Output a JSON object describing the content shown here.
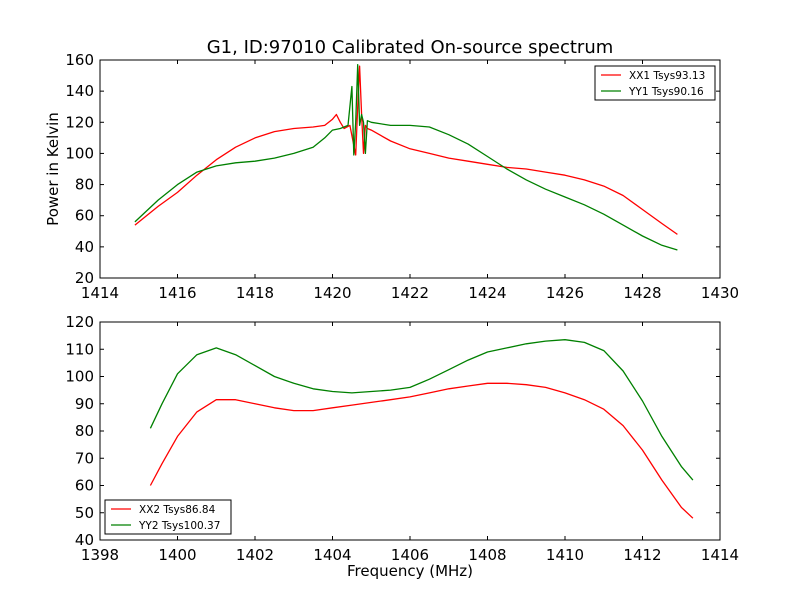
{
  "figure": {
    "title": "G1, ID:97010 Calibrated On-source spectrum",
    "xlabel": "Frequency (MHz)",
    "ylabel": "Power in Kelvin"
  },
  "chart_data": [
    {
      "type": "line",
      "title": "G1, ID:97010 Calibrated On-source spectrum",
      "xlabel": "",
      "ylabel": "Power in Kelvin",
      "xlim": [
        1414,
        1430
      ],
      "ylim": [
        20,
        160
      ],
      "xticks": [
        1414,
        1416,
        1418,
        1420,
        1422,
        1424,
        1426,
        1428,
        1430
      ],
      "yticks": [
        20,
        40,
        60,
        80,
        100,
        120,
        140,
        160
      ],
      "grid": false,
      "legend_position": "top-right",
      "series": [
        {
          "name": "XX1 Tsys93.13",
          "color": "#ff0000",
          "x": [
            1414.9,
            1415.2,
            1415.5,
            1416.0,
            1416.5,
            1417.0,
            1417.5,
            1418.0,
            1418.5,
            1419.0,
            1419.5,
            1419.8,
            1420.0,
            1420.1,
            1420.2,
            1420.3,
            1420.45,
            1420.6,
            1420.65,
            1420.7,
            1420.75,
            1420.8,
            1420.85,
            1420.9,
            1421.0,
            1421.5,
            1422.0,
            1422.5,
            1423.0,
            1423.5,
            1424.0,
            1424.5,
            1425.0,
            1425.5,
            1426.0,
            1426.5,
            1427.0,
            1427.5,
            1428.0,
            1428.5,
            1428.9
          ],
          "y": [
            54,
            60,
            66,
            75,
            86,
            96,
            104,
            110,
            114,
            116,
            117,
            118,
            122,
            125,
            120,
            116,
            118,
            99,
            130,
            156,
            125,
            100,
            118,
            116,
            115,
            108,
            103,
            100,
            97,
            95,
            93,
            91,
            90,
            88,
            86,
            83,
            79,
            73,
            64,
            55,
            48
          ]
        },
        {
          "name": "YY1 Tsys90.16",
          "color": "#008000",
          "x": [
            1414.9,
            1415.2,
            1415.5,
            1416.0,
            1416.5,
            1417.0,
            1417.5,
            1418.0,
            1418.5,
            1419.0,
            1419.5,
            1419.8,
            1420.0,
            1420.2,
            1420.4,
            1420.5,
            1420.55,
            1420.6,
            1420.65,
            1420.7,
            1420.75,
            1420.8,
            1420.85,
            1420.9,
            1421.0,
            1421.5,
            1422.0,
            1422.5,
            1423.0,
            1423.5,
            1424.0,
            1424.5,
            1425.0,
            1425.5,
            1426.0,
            1426.5,
            1427.0,
            1427.5,
            1428.0,
            1428.5,
            1428.9
          ],
          "y": [
            56,
            63,
            70,
            80,
            88,
            92,
            94,
            95,
            97,
            100,
            104,
            110,
            115,
            116,
            118,
            143,
            99,
            120,
            157,
            118,
            125,
            120,
            100,
            121,
            120,
            118,
            118,
            117,
            112,
            106,
            98,
            90,
            83,
            77,
            72,
            67,
            61,
            54,
            47,
            41,
            38
          ]
        }
      ]
    },
    {
      "type": "line",
      "title": "",
      "xlabel": "Frequency (MHz)",
      "ylabel": "",
      "xlim": [
        1398,
        1414
      ],
      "ylim": [
        40,
        120
      ],
      "xticks": [
        1398,
        1400,
        1402,
        1404,
        1406,
        1408,
        1410,
        1412,
        1414
      ],
      "yticks": [
        40,
        50,
        60,
        70,
        80,
        90,
        100,
        110,
        120
      ],
      "grid": false,
      "legend_position": "bottom-left",
      "series": [
        {
          "name": "XX2 Tsys86.84",
          "color": "#ff0000",
          "x": [
            1399.3,
            1399.6,
            1400.0,
            1400.5,
            1401.0,
            1401.5,
            1402.0,
            1402.5,
            1403.0,
            1403.5,
            1404.0,
            1404.5,
            1405.0,
            1405.5,
            1406.0,
            1406.5,
            1407.0,
            1407.5,
            1408.0,
            1408.5,
            1409.0,
            1409.5,
            1410.0,
            1410.5,
            1411.0,
            1411.5,
            1412.0,
            1412.5,
            1413.0,
            1413.3
          ],
          "y": [
            60,
            68,
            78,
            87,
            91.5,
            91.5,
            90,
            88.5,
            87.5,
            87.5,
            88.5,
            89.5,
            90.5,
            91.5,
            92.5,
            94,
            95.5,
            96.5,
            97.5,
            97.5,
            97,
            96,
            94,
            91.5,
            88,
            82,
            73,
            62,
            52,
            48
          ]
        },
        {
          "name": "YY2 Tsys100.37",
          "color": "#008000",
          "x": [
            1399.3,
            1399.6,
            1400.0,
            1400.5,
            1401.0,
            1401.5,
            1402.0,
            1402.5,
            1403.0,
            1403.5,
            1404.0,
            1404.5,
            1405.0,
            1405.5,
            1406.0,
            1406.5,
            1407.0,
            1407.5,
            1408.0,
            1408.5,
            1409.0,
            1409.5,
            1410.0,
            1410.5,
            1411.0,
            1411.5,
            1412.0,
            1412.5,
            1413.0,
            1413.3
          ],
          "y": [
            81,
            90,
            101,
            108,
            110.5,
            108,
            104,
            100,
            97.5,
            95.5,
            94.5,
            94,
            94.5,
            95,
            96,
            99,
            102.5,
            106,
            109,
            110.5,
            112,
            113,
            113.5,
            112.5,
            109.5,
            102,
            91,
            78,
            67,
            62
          ]
        }
      ]
    }
  ]
}
